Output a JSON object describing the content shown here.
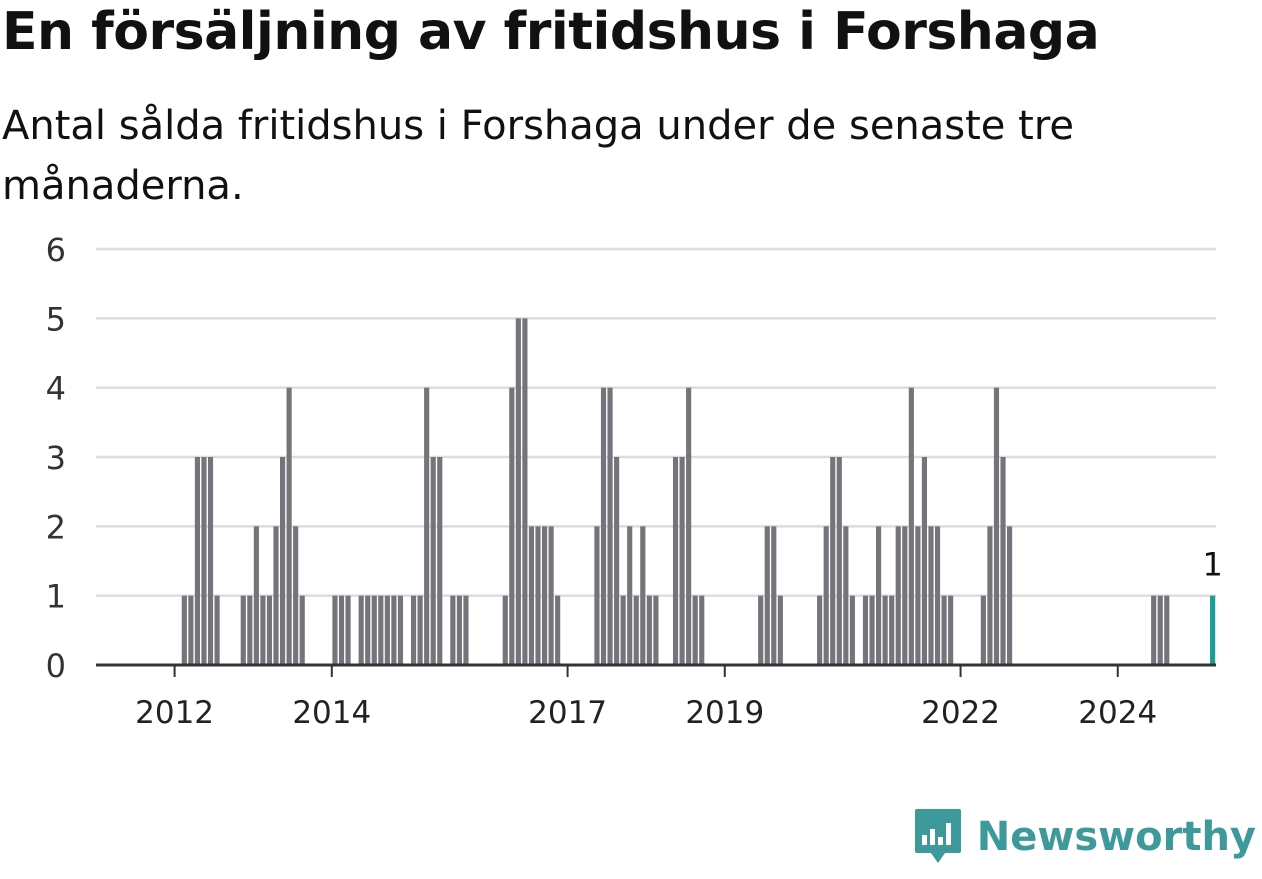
{
  "title": "En försäljning av fritidshus i Forshaga",
  "subtitle": "Antal sålda fritidshus i Forshaga under de senaste tre månaderna.",
  "brand": "Newsworthy",
  "colors": {
    "bar": "#75747b",
    "highlight": "#1a9e96",
    "grid": "#dddddd",
    "axis": "#333333",
    "brand": "#3e9a9a"
  },
  "chart_data": {
    "type": "bar",
    "title": "En försäljning av fritidshus i Forshaga",
    "xlabel": "",
    "ylabel": "",
    "ylim": [
      0,
      6
    ],
    "yticks": [
      "0",
      "1",
      "2",
      "3",
      "4",
      "5",
      "6"
    ],
    "xticks": [
      "2012",
      "2014",
      "2017",
      "2019",
      "2022",
      "2024"
    ],
    "x_range": [
      "2011-01",
      "2025-03"
    ],
    "grid": true,
    "series": [
      {
        "x": [
          "2011-01",
          "2011-02",
          "2011-03",
          "2011-04",
          "2011-05",
          "2011-06",
          "2011-07",
          "2011-08",
          "2011-09",
          "2011-10",
          "2011-11",
          "2011-12",
          "2012-01",
          "2012-02",
          "2012-03",
          "2012-04",
          "2012-05",
          "2012-06",
          "2012-07",
          "2012-08",
          "2012-09",
          "2012-10",
          "2012-11",
          "2012-12",
          "2013-01",
          "2013-02",
          "2013-03",
          "2013-04",
          "2013-05",
          "2013-06",
          "2013-07",
          "2013-08",
          "2013-09",
          "2013-10",
          "2013-11",
          "2013-12",
          "2014-01",
          "2014-02",
          "2014-03",
          "2014-04",
          "2014-05",
          "2014-06",
          "2014-07",
          "2014-08",
          "2014-09",
          "2014-10",
          "2014-11",
          "2014-12",
          "2015-01",
          "2015-02",
          "2015-03",
          "2015-04",
          "2015-05",
          "2015-06",
          "2015-07",
          "2015-08",
          "2015-09",
          "2015-10",
          "2015-11",
          "2015-12",
          "2016-01",
          "2016-02",
          "2016-03",
          "2016-04",
          "2016-05",
          "2016-06",
          "2016-07",
          "2016-08",
          "2016-09",
          "2016-10",
          "2016-11",
          "2016-12",
          "2017-01",
          "2017-02",
          "2017-03",
          "2017-04",
          "2017-05",
          "2017-06",
          "2017-07",
          "2017-08",
          "2017-09",
          "2017-10",
          "2017-11",
          "2017-12",
          "2018-01",
          "2018-02",
          "2018-03",
          "2018-04",
          "2018-05",
          "2018-06",
          "2018-07",
          "2018-08",
          "2018-09",
          "2018-10",
          "2018-11",
          "2018-12",
          "2019-01",
          "2019-02",
          "2019-03",
          "2019-04",
          "2019-05",
          "2019-06",
          "2019-07",
          "2019-08",
          "2019-09",
          "2019-10",
          "2019-11",
          "2019-12",
          "2020-01",
          "2020-02",
          "2020-03",
          "2020-04",
          "2020-05",
          "2020-06",
          "2020-07",
          "2020-08",
          "2020-09",
          "2020-10",
          "2020-11",
          "2020-12",
          "2021-01",
          "2021-02",
          "2021-03",
          "2021-04",
          "2021-05",
          "2021-06",
          "2021-07",
          "2021-08",
          "2021-09",
          "2021-10",
          "2021-11",
          "2021-12",
          "2022-01",
          "2022-02",
          "2022-03",
          "2022-04",
          "2022-05",
          "2022-06",
          "2022-07",
          "2022-08",
          "2022-09",
          "2022-10",
          "2022-11",
          "2022-12",
          "2023-01",
          "2023-02",
          "2023-03",
          "2023-04",
          "2023-05",
          "2023-06",
          "2023-07",
          "2023-08",
          "2023-09",
          "2023-10",
          "2023-11",
          "2023-12",
          "2024-01",
          "2024-02",
          "2024-03",
          "2024-04",
          "2024-05",
          "2024-06",
          "2024-07",
          "2024-08",
          "2024-09",
          "2024-10",
          "2024-11",
          "2024-12",
          "2025-01",
          "2025-02",
          "2025-03"
        ],
        "values": [
          0,
          0,
          0,
          0,
          0,
          0,
          0,
          0,
          0,
          0,
          0,
          0,
          0,
          1,
          1,
          3,
          3,
          3,
          1,
          0,
          0,
          0,
          1,
          1,
          2,
          1,
          1,
          2,
          3,
          4,
          2,
          1,
          0,
          0,
          0,
          0,
          1,
          1,
          1,
          0,
          1,
          1,
          1,
          1,
          1,
          1,
          1,
          0,
          1,
          1,
          4,
          3,
          3,
          0,
          1,
          1,
          1,
          0,
          0,
          0,
          0,
          0,
          1,
          4,
          5,
          5,
          2,
          2,
          2,
          2,
          1,
          0,
          0,
          0,
          0,
          0,
          2,
          4,
          4,
          3,
          1,
          2,
          1,
          2,
          1,
          1,
          0,
          0,
          3,
          3,
          4,
          1,
          1,
          0,
          0,
          0,
          0,
          0,
          0,
          0,
          0,
          1,
          2,
          2,
          1,
          0,
          0,
          0,
          0,
          0,
          1,
          2,
          3,
          3,
          2,
          1,
          0,
          1,
          1,
          2,
          1,
          1,
          2,
          2,
          4,
          2,
          3,
          2,
          2,
          1,
          1,
          0,
          0,
          0,
          0,
          1,
          2,
          4,
          3,
          2,
          0,
          0,
          0,
          0,
          0,
          0,
          0,
          0,
          0,
          0,
          0,
          0,
          0,
          0,
          0,
          0,
          0,
          0,
          0,
          0,
          0,
          1,
          1,
          1,
          0,
          0,
          0,
          0,
          0,
          0,
          1
        ]
      }
    ],
    "highlight_index": 170,
    "highlight_label": "1"
  }
}
